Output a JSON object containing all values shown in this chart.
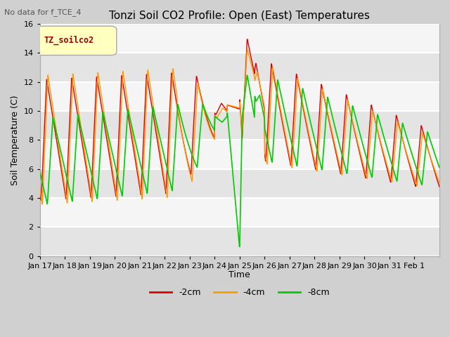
{
  "title": "Tonzi Soil CO2 Profile: Open (East) Temperatures",
  "subtitle": "No data for f_TCE_4",
  "ylabel": "Soil Temperature (C)",
  "xlabel": "Time",
  "legend_label": "TZ_soilco2",
  "series_labels": [
    "-2cm",
    "-4cm",
    "-8cm"
  ],
  "series_colors": [
    "#dd0000",
    "#ff9900",
    "#00cc00"
  ],
  "ylim": [
    0,
    16
  ],
  "tick_dates": [
    "Jan 17",
    "Jan 18",
    "Jan 19",
    "Jan 20",
    "Jan 21",
    "Jan 22",
    "Jan 23",
    "Jan 24",
    "Jan 25",
    "Jan 26",
    "Jan 27",
    "Jan 28",
    "Jan 29",
    "Jan 30",
    "Jan 31",
    "Feb 1"
  ],
  "band_colors": [
    "#e8e8e8",
    "#efefef"
  ]
}
